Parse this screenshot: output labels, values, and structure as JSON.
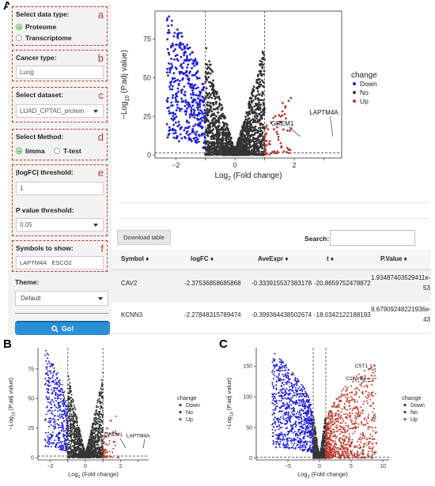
{
  "panel_letters": {
    "a": "A",
    "b": "B",
    "c": "C"
  },
  "controls": {
    "data_type": {
      "label": "Select data type:",
      "letter": "a",
      "options": [
        "Proteome",
        "Transcriptome"
      ],
      "selected": "Proteome"
    },
    "cancer_type": {
      "label": "Cancer type:",
      "letter": "b",
      "value": "Lung"
    },
    "dataset": {
      "label": "Select dataset:",
      "letter": "c",
      "value": "LUAD_CPTAC_protein"
    },
    "method": {
      "label": "Select Method:",
      "letter": "d",
      "options": [
        "limma",
        "T-test"
      ],
      "selected": "limma"
    },
    "thresholds": {
      "letter": "e",
      "logfc_label": "|logFC| threshold:",
      "logfc_value": "1",
      "p_label": "P value threshold:",
      "p_value": "0.05"
    },
    "symbols": {
      "label": "Symbols to show:",
      "letter": "f",
      "tags": [
        "LAPTM4A",
        "ESCO2"
      ]
    },
    "theme": {
      "label": "Theme:",
      "value": "Default"
    },
    "go": {
      "label": "Go!"
    }
  },
  "table_ui": {
    "download_label": "Download table",
    "search_label": "Search:"
  },
  "table": {
    "columns": [
      "Symbol",
      "logFC",
      "AveExpr",
      "t",
      "P.Value"
    ],
    "rows": [
      {
        "Symbol": "CAV2",
        "logFC": "-2.37536858685868",
        "AveExpr": "-0.333915537383178",
        "t": "-20.8659752478872",
        "P.Value": [
          "1.93487403529411e-",
          "53"
        ]
      },
      {
        "Symbol": "KCNN3",
        "logFC": "-2.27848315789474",
        "AveExpr": "-0.399364438502674",
        "t": "-18.0342122188193",
        "P.Value": [
          "9.67909248221936e-",
          "43"
        ]
      }
    ]
  },
  "colors": {
    "down": "#1f1fd6",
    "no": "#333333",
    "up": "#c0392b",
    "go_button": "#2b8fd6",
    "dashed_border": "#c0392b"
  },
  "chart_data": [
    {
      "type": "scatter",
      "panel": "A",
      "xlabel": "Log2 (Fold change)",
      "ylabel": "-Log10 (P.adj value)",
      "xlim": [
        -2.7,
        3.6
      ],
      "ylim": [
        -2,
        93
      ],
      "xticks": [
        -2,
        -1,
        0,
        1,
        2,
        3
      ],
      "xtick_labels": [
        "-2",
        "",
        "0",
        "",
        "2",
        ""
      ],
      "yticks": [
        0,
        25,
        50,
        75
      ],
      "threshold_x": [
        -1,
        1
      ],
      "threshold_y": 1.3,
      "legend": {
        "title": "change",
        "items": [
          "Down",
          "No",
          "Up"
        ],
        "position": "right"
      },
      "annotations": [
        {
          "label": "GREM1",
          "point": [
            2.2,
            12
          ],
          "text_at": [
            1.6,
            19
          ]
        },
        {
          "label": "LAPTM4A",
          "point": [
            3.3,
            12
          ],
          "text_at": [
            3.0,
            26
          ]
        }
      ],
      "series": [
        {
          "name": "Down",
          "x_range": [
            -2.3,
            -1.0
          ],
          "y_max": 92,
          "count": 420
        },
        {
          "name": "No",
          "x_range": [
            -1.0,
            1.0
          ],
          "y_max": 68,
          "count": 1500
        },
        {
          "name": "Up",
          "x_range": [
            1.0,
            1.9
          ],
          "y_max": 40,
          "count": 70
        }
      ]
    },
    {
      "type": "scatter",
      "panel": "B",
      "xlabel": "Log2 (Fold change)",
      "ylabel": "-Log10 (P.adj value)",
      "xlim": [
        -2.7,
        3.6
      ],
      "ylim": [
        -2,
        93
      ],
      "xticks": [
        -2,
        -1,
        0,
        1,
        2,
        3
      ],
      "xtick_labels": [
        "-2",
        "",
        "0",
        "",
        "2",
        ""
      ],
      "yticks": [
        0,
        25,
        50,
        75
      ],
      "threshold_x": [
        -1,
        1
      ],
      "threshold_y": 1.3,
      "legend": {
        "title": "change",
        "items": [
          "Down",
          "No",
          "Up"
        ],
        "position": "right"
      },
      "annotations": [
        {
          "label": "GREM1",
          "point": [
            2.3,
            8
          ],
          "text_at": [
            1.6,
            18
          ]
        },
        {
          "label": "LAPTM4A",
          "point": [
            3.3,
            8
          ],
          "text_at": [
            3.0,
            17
          ]
        }
      ],
      "series": [
        {
          "name": "Down",
          "x_range": [
            -2.3,
            -1.0
          ],
          "y_max": 92,
          "count": 420
        },
        {
          "name": "No",
          "x_range": [
            -1.0,
            1.0
          ],
          "y_max": 68,
          "count": 1500
        },
        {
          "name": "Up",
          "x_range": [
            1.0,
            1.9
          ],
          "y_max": 40,
          "count": 70
        }
      ]
    },
    {
      "type": "scatter",
      "panel": "C",
      "xlabel": "Log2 (Fold change)",
      "ylabel": "-Log10 (P.adj value)",
      "xlim": [
        -10,
        11
      ],
      "ylim": [
        -3,
        180
      ],
      "xticks": [
        -5,
        0,
        5,
        10
      ],
      "xtick_labels": [
        "-5",
        "0",
        "5",
        "10"
      ],
      "yticks": [
        0,
        50,
        100,
        150
      ],
      "threshold_x": [
        -1,
        1
      ],
      "threshold_y": 1.3,
      "legend": {
        "title": "change",
        "items": [
          "Down",
          "No",
          "Up"
        ],
        "position": "right"
      },
      "annotations": [
        {
          "label": "CST1",
          "point": [
            8.4,
            145
          ],
          "text_at": [
            6.6,
            148
          ]
        },
        {
          "label": "C11orf86",
          "point": [
            8.6,
            125
          ],
          "text_at": [
            5.8,
            127
          ]
        }
      ],
      "series": [
        {
          "name": "Down",
          "x_range": [
            -7.5,
            -1.0
          ],
          "y_max": 175,
          "count": 900
        },
        {
          "name": "No",
          "x_range": [
            -1.0,
            1.0
          ],
          "y_max": 70,
          "count": 700
        },
        {
          "name": "Up",
          "x_range": [
            1.0,
            9.0
          ],
          "y_max": 160,
          "count": 900
        }
      ]
    }
  ]
}
